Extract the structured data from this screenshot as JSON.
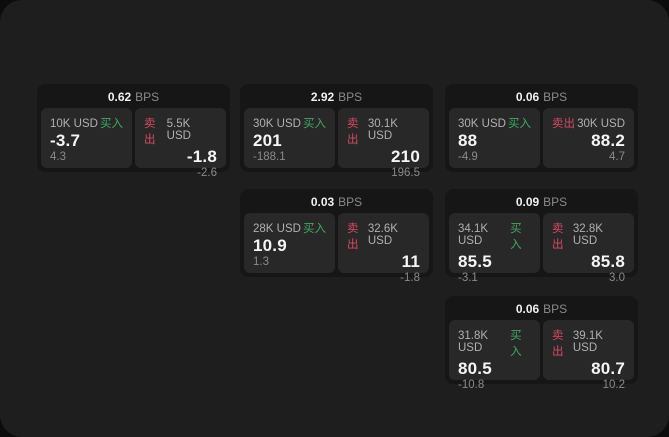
{
  "labels": {
    "bps": "BPS",
    "buy": "买入",
    "sell": "卖出",
    "currency_unit": "USD"
  },
  "colors": {
    "outside_bg": "#0c0c0c",
    "window_bg": "#1e1e1e",
    "card_bg": "#161616",
    "panel_bg": "#282828",
    "buy_green": "#41a863",
    "sell_red": "#d64965",
    "value_text": "#f5f5f5",
    "muted_text": "#8a8a8a"
  },
  "cards": [
    {
      "row": 1,
      "col": 1,
      "bps": "0.62",
      "buy": {
        "size": "10K USD",
        "value": "-3.7",
        "sub": "4.3"
      },
      "sell": {
        "size": "5.5K USD",
        "value": "-1.8",
        "sub": "-2.6"
      }
    },
    {
      "row": 1,
      "col": 2,
      "bps": "2.92",
      "buy": {
        "size": "30K USD",
        "value": "201",
        "sub": "-188.1"
      },
      "sell": {
        "size": "30.1K USD",
        "value": "210",
        "sub": "196.5"
      }
    },
    {
      "row": 1,
      "col": 3,
      "bps": "0.06",
      "buy": {
        "size": "30K USD",
        "value": "88",
        "sub": "-4.9"
      },
      "sell": {
        "size": "30K USD",
        "value": "88.2",
        "sub": "4.7"
      }
    },
    {
      "row": 2,
      "col": 2,
      "bps": "0.03",
      "buy": {
        "size": "28K USD",
        "value": "10.9",
        "sub": "1.3"
      },
      "sell": {
        "size": "32.6K USD",
        "value": "11",
        "sub": "-1.8"
      }
    },
    {
      "row": 2,
      "col": 3,
      "bps": "0.09",
      "buy": {
        "size": "34.1K USD",
        "value": "85.5",
        "sub": "-3.1"
      },
      "sell": {
        "size": "32.8K USD",
        "value": "85.8",
        "sub": "3.0"
      }
    },
    {
      "row": 3,
      "col": 3,
      "bps": "0.06",
      "buy": {
        "size": "31.8K USD",
        "value": "80.5",
        "sub": "-10.8"
      },
      "sell": {
        "size": "39.1K USD",
        "value": "80.7",
        "sub": "10.2"
      }
    }
  ]
}
